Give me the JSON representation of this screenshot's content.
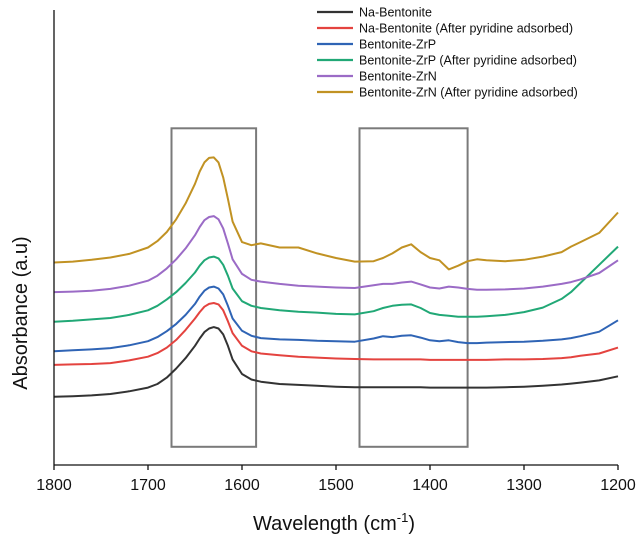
{
  "chart_data": {
    "type": "line",
    "title": "",
    "xlabel": "Wavelength (cm",
    "xlabel_sup": "-1",
    "xlabel_suffix": ")",
    "ylabel": "Absorbance (a.u)",
    "x_reversed": true,
    "xlim": [
      1800,
      1200
    ],
    "ylim": [
      0,
      1
    ],
    "x_ticks": [
      "1800",
      "1700",
      "1600",
      "1500",
      "1400",
      "1300",
      "1200"
    ],
    "x_tick_values": [
      1800,
      1700,
      1600,
      1500,
      1400,
      1300,
      1200
    ],
    "y_tick_labels_shown": false,
    "legend_position": "top-right",
    "highlight_regions": [
      {
        "x_from": 1675,
        "x_to": 1585,
        "y_from": 0.04,
        "y_to": 0.74,
        "color": "#7a7a7a"
      },
      {
        "x_from": 1475,
        "x_to": 1360,
        "y_from": 0.04,
        "y_to": 0.74,
        "color": "#7a7a7a"
      }
    ],
    "x": [
      1800,
      1780,
      1760,
      1740,
      1720,
      1700,
      1690,
      1680,
      1670,
      1660,
      1650,
      1645,
      1640,
      1635,
      1630,
      1625,
      1620,
      1615,
      1610,
      1600,
      1590,
      1580,
      1560,
      1540,
      1520,
      1500,
      1480,
      1460,
      1450,
      1440,
      1430,
      1420,
      1410,
      1400,
      1390,
      1380,
      1370,
      1360,
      1350,
      1340,
      1320,
      1300,
      1280,
      1260,
      1250,
      1240,
      1220,
      1200
    ],
    "series": [
      {
        "name": "Na-Bentonite",
        "color": "#333333",
        "values": [
          0.15,
          0.151,
          0.153,
          0.156,
          0.162,
          0.17,
          0.178,
          0.192,
          0.212,
          0.235,
          0.262,
          0.278,
          0.292,
          0.3,
          0.303,
          0.3,
          0.287,
          0.262,
          0.232,
          0.2,
          0.188,
          0.183,
          0.178,
          0.176,
          0.174,
          0.172,
          0.171,
          0.171,
          0.171,
          0.171,
          0.171,
          0.171,
          0.171,
          0.17,
          0.17,
          0.17,
          0.17,
          0.17,
          0.17,
          0.17,
          0.171,
          0.172,
          0.174,
          0.177,
          0.179,
          0.181,
          0.186,
          0.195
        ]
      },
      {
        "name": "Na-Bentonite (After pyridine adsorbed)",
        "color": "#e4433f",
        "values": [
          0.22,
          0.221,
          0.222,
          0.224,
          0.23,
          0.238,
          0.246,
          0.258,
          0.275,
          0.297,
          0.322,
          0.336,
          0.348,
          0.354,
          0.356,
          0.353,
          0.34,
          0.316,
          0.29,
          0.262,
          0.25,
          0.245,
          0.241,
          0.238,
          0.236,
          0.234,
          0.233,
          0.232,
          0.232,
          0.232,
          0.232,
          0.232,
          0.232,
          0.231,
          0.231,
          0.231,
          0.231,
          0.231,
          0.231,
          0.231,
          0.232,
          0.232,
          0.233,
          0.235,
          0.237,
          0.24,
          0.245,
          0.258
        ]
      },
      {
        "name": "Bentonite-ZrP",
        "color": "#2f64b5",
        "values": [
          0.25,
          0.252,
          0.254,
          0.257,
          0.263,
          0.272,
          0.281,
          0.294,
          0.31,
          0.33,
          0.354,
          0.37,
          0.383,
          0.39,
          0.392,
          0.388,
          0.375,
          0.35,
          0.322,
          0.295,
          0.284,
          0.279,
          0.276,
          0.275,
          0.273,
          0.272,
          0.271,
          0.278,
          0.283,
          0.281,
          0.284,
          0.285,
          0.28,
          0.274,
          0.272,
          0.274,
          0.27,
          0.268,
          0.268,
          0.269,
          0.27,
          0.271,
          0.273,
          0.276,
          0.279,
          0.283,
          0.293,
          0.318
        ]
      },
      {
        "name": "Bentonite-ZrP (After pyridine adsorbed)",
        "color": "#21a876",
        "values": [
          0.315,
          0.317,
          0.32,
          0.323,
          0.33,
          0.34,
          0.35,
          0.364,
          0.38,
          0.4,
          0.423,
          0.438,
          0.45,
          0.456,
          0.458,
          0.454,
          0.44,
          0.416,
          0.388,
          0.36,
          0.35,
          0.345,
          0.34,
          0.337,
          0.335,
          0.332,
          0.331,
          0.338,
          0.345,
          0.35,
          0.352,
          0.353,
          0.345,
          0.334,
          0.33,
          0.328,
          0.326,
          0.326,
          0.326,
          0.327,
          0.33,
          0.336,
          0.346,
          0.365,
          0.38,
          0.4,
          0.44,
          0.48
        ]
      },
      {
        "name": "Bentonite-ZrN",
        "color": "#9b6bc6",
        "values": [
          0.38,
          0.381,
          0.383,
          0.387,
          0.394,
          0.405,
          0.416,
          0.432,
          0.452,
          0.476,
          0.505,
          0.523,
          0.538,
          0.545,
          0.547,
          0.54,
          0.52,
          0.487,
          0.452,
          0.42,
          0.407,
          0.403,
          0.398,
          0.394,
          0.392,
          0.39,
          0.389,
          0.395,
          0.398,
          0.398,
          0.401,
          0.403,
          0.397,
          0.39,
          0.388,
          0.392,
          0.39,
          0.387,
          0.385,
          0.385,
          0.386,
          0.388,
          0.392,
          0.398,
          0.402,
          0.408,
          0.422,
          0.45
        ]
      },
      {
        "name": "Bentonite-ZrN (After pyridine adsorbed)",
        "color": "#c19223",
        "values": [
          0.445,
          0.447,
          0.451,
          0.456,
          0.464,
          0.478,
          0.492,
          0.512,
          0.54,
          0.575,
          0.618,
          0.645,
          0.665,
          0.675,
          0.676,
          0.665,
          0.632,
          0.585,
          0.535,
          0.49,
          0.483,
          0.487,
          0.478,
          0.478,
          0.465,
          0.455,
          0.447,
          0.448,
          0.455,
          0.465,
          0.478,
          0.485,
          0.468,
          0.455,
          0.45,
          0.43,
          0.438,
          0.448,
          0.452,
          0.45,
          0.448,
          0.451,
          0.458,
          0.468,
          0.48,
          0.49,
          0.51,
          0.555
        ]
      }
    ]
  }
}
